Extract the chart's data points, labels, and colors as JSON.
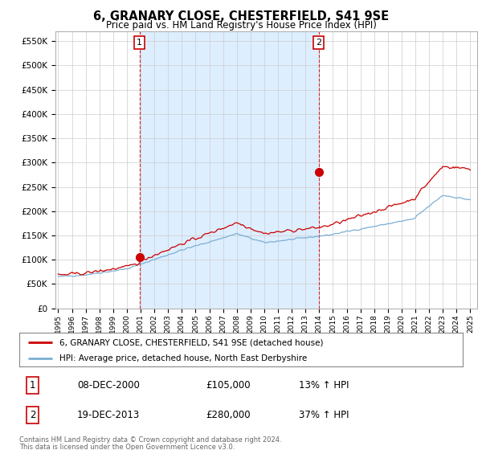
{
  "title": "6, GRANARY CLOSE, CHESTERFIELD, S41 9SE",
  "subtitle": "Price paid vs. HM Land Registry's House Price Index (HPI)",
  "ylabel_ticks": [
    "£0",
    "£50K",
    "£100K",
    "£150K",
    "£200K",
    "£250K",
    "£300K",
    "£350K",
    "£400K",
    "£450K",
    "£500K",
    "£550K"
  ],
  "ytick_values": [
    0,
    50000,
    100000,
    150000,
    200000,
    250000,
    300000,
    350000,
    400000,
    450000,
    500000,
    550000
  ],
  "ylim": [
    0,
    570000
  ],
  "x_start_year": 1995,
  "x_end_year": 2025,
  "hpi_color": "#7bafd4",
  "price_color": "#cc0000",
  "shade_color": "#ddeeff",
  "purchase1_year": 2000.92,
  "purchase1_value": 105000,
  "purchase1_label": "1",
  "purchase2_year": 2013.96,
  "purchase2_value": 280000,
  "purchase2_label": "2",
  "legend_line1": "6, GRANARY CLOSE, CHESTERFIELD, S41 9SE (detached house)",
  "legend_line2": "HPI: Average price, detached house, North East Derbyshire",
  "table_row1": [
    "1",
    "08-DEC-2000",
    "£105,000",
    "13% ↑ HPI"
  ],
  "table_row2": [
    "2",
    "19-DEC-2013",
    "£280,000",
    "37% ↑ HPI"
  ],
  "footnote1": "Contains HM Land Registry data © Crown copyright and database right 2024.",
  "footnote2": "This data is licensed under the Open Government Licence v3.0.",
  "bg_color": "#ffffff",
  "grid_color": "#cccccc"
}
